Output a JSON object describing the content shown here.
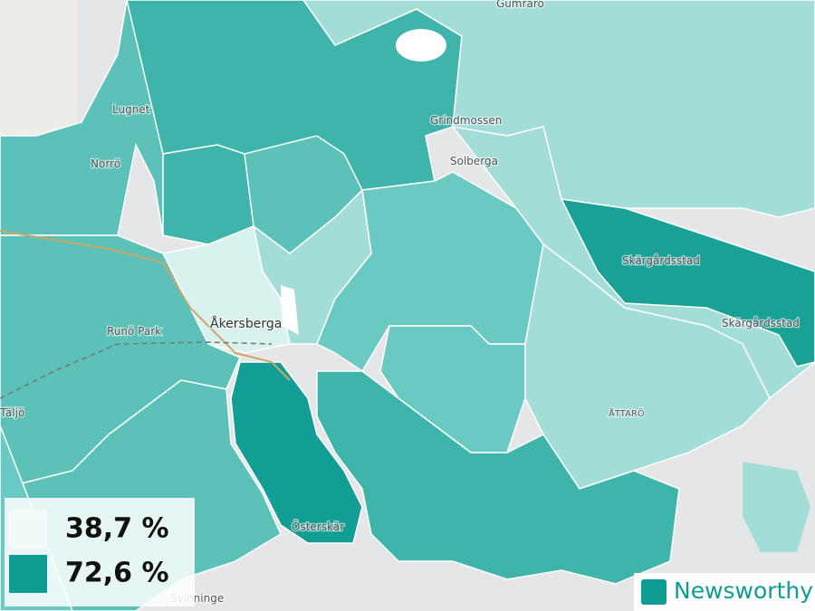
{
  "places": [
    "Gumrarö",
    "Lugnet",
    "Grindmossen",
    "Norrö",
    "Solberga",
    "Skärgårdsstad",
    "Skärgårdsstad",
    "Åkersberga",
    "Runö Park",
    "ÅTTARÖ",
    "Täljö",
    "Österskär",
    "Svinninge"
  ],
  "legend": [
    "38,7 %",
    "72,6 %"
  ],
  "brand": "Newsworthy"
}
